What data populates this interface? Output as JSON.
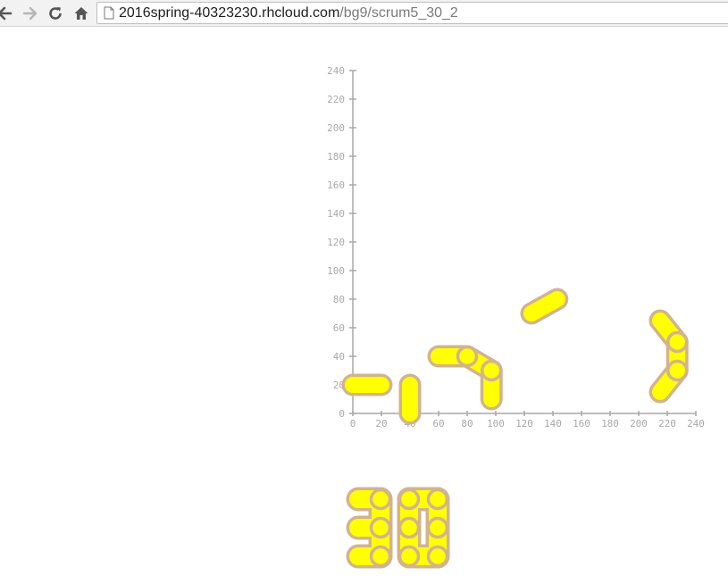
{
  "browser": {
    "url_host": "2016spring-40323230.rhcloud.com",
    "url_path": "/bg9/scrum5_30_2",
    "icons": [
      "back-arrow-icon",
      "forward-arrow-icon",
      "reload-icon",
      "home-icon",
      "page-icon"
    ]
  },
  "colors": {
    "link_fill": "#ffff00",
    "link_outline": "#d2b48c",
    "axis": "#a8a8a8"
  },
  "chart_data": {
    "type": "scatter",
    "title": "",
    "xlabel": "",
    "ylabel": "",
    "xlim": [
      0,
      240
    ],
    "ylim": [
      0,
      240
    ],
    "x_ticks": [
      "0",
      "20",
      "40",
      "60",
      "80",
      "100",
      "120",
      "140",
      "160",
      "180",
      "200",
      "220",
      "240"
    ],
    "y_ticks": [
      "0",
      "20",
      "40",
      "60",
      "80",
      "100",
      "120",
      "140",
      "160",
      "180",
      "200",
      "220",
      "240"
    ],
    "grid": false,
    "links": [
      {
        "from": [
          0,
          20
        ],
        "to": [
          20,
          20
        ]
      },
      {
        "from": [
          40,
          20
        ],
        "to": [
          40,
          0
        ]
      },
      {
        "from": [
          60,
          40
        ],
        "to": [
          80,
          40
        ]
      },
      {
        "from": [
          80,
          40
        ],
        "to": [
          97,
          30
        ]
      },
      {
        "from": [
          97,
          30
        ],
        "to": [
          97,
          10
        ]
      },
      {
        "from": [
          125,
          70
        ],
        "to": [
          143,
          80
        ]
      },
      {
        "from": [
          215,
          65
        ],
        "to": [
          227,
          50
        ]
      },
      {
        "from": [
          227,
          50
        ],
        "to": [
          227,
          30
        ]
      },
      {
        "from": [
          227,
          30
        ],
        "to": [
          215,
          15
        ]
      }
    ],
    "digits": [
      "3",
      "0"
    ]
  }
}
